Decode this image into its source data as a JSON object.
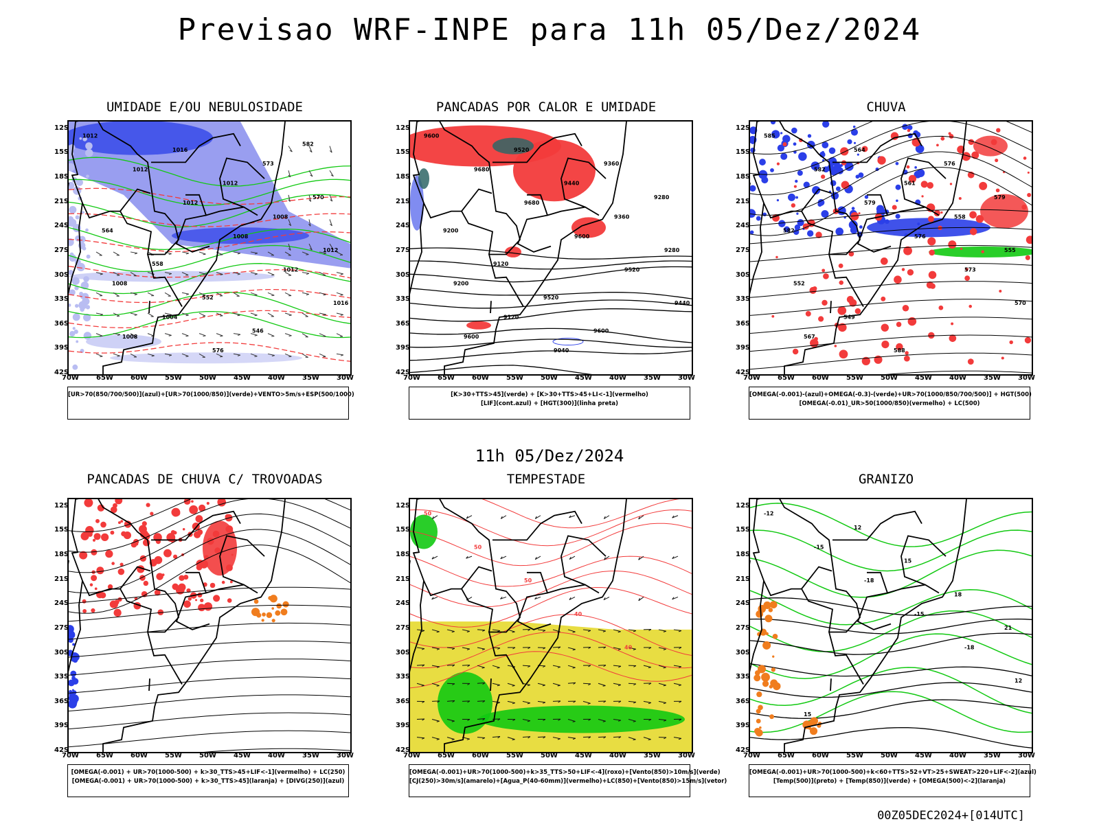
{
  "header": {
    "title": "Previsao WRF-INPE  para 11h 05/Dez/2024"
  },
  "mid_title": "11h 05/Dez/2024",
  "footer": "00Z05DEC2024+[014UTC]",
  "axes": {
    "lat_labels": [
      "12S",
      "15S",
      "18S",
      "21S",
      "24S",
      "27S",
      "30S",
      "33S",
      "36S",
      "39S",
      "42S"
    ],
    "lon_labels": [
      "70W",
      "65W",
      "60W",
      "55W",
      "50W",
      "45W",
      "40W",
      "35W",
      "30W"
    ]
  },
  "colors": {
    "blue": "#2b3fe8",
    "green": "#12c912",
    "red": "#f23b3b",
    "orange": "#f07d1e",
    "yellow": "#e6d92e",
    "teal": "#2f6666",
    "lightblue": "#b9bdf2",
    "midblue": "#7f86ec"
  },
  "panels": [
    {
      "title": "UMIDADE E/OU NEBULOSIDADE",
      "legend": [
        "[UR>70(850/700/500)](azul)+[UR>70(1000/850)](verde)+VENTO>5m/s+ESP(500/1000)"
      ],
      "contour_labels": [
        "1012",
        "1012",
        "1012",
        "1008",
        "1012",
        "1016",
        "1008",
        "1016",
        "1012",
        "1008",
        "1012",
        "1008",
        "1004",
        "576",
        "573",
        "570",
        "564",
        "558",
        "552",
        "546",
        "582"
      ]
    },
    {
      "title": "PANCADAS POR CALOR E UMIDADE",
      "legend": [
        "[K>30+TTS>45](verde) + [K>30+TTS>45+LI<-1](vermelho)",
        "[LIF](cont.azul) + [HGT(300)](linha preta)"
      ],
      "contour_labels": [
        "9600",
        "9680",
        "9680",
        "9600",
        "9520",
        "9440",
        "9600",
        "9520",
        "9440",
        "9360",
        "9280",
        "9200",
        "9120",
        "9040",
        "9360",
        "9280",
        "9200",
        "9120",
        "9520",
        "9600"
      ]
    },
    {
      "title": "CHUVA",
      "legend": [
        "[OMEGA(-0.001)-(azul)+OMEGA(-0.3)-(verde)+UR>70(1000/850/700/500)] + HGT(500)",
        "[OMEGA(-0.01)_UR>50(1000/850)(vermelho) + LC(500)"
      ],
      "contour_labels": [
        "585",
        "582",
        "579",
        "576",
        "573",
        "570",
        "567",
        "564",
        "561",
        "558",
        "555",
        "552",
        "549",
        "588",
        "576",
        "579",
        "582"
      ]
    },
    {
      "title": "PANCADAS DE CHUVA C/ TROVOADAS",
      "legend": [
        "[OMEGA(-0.001) + UR>70(1000-500) + k>30_TTS>45+LIF<-1](vermelho) + LC(250)",
        "[OMEGA(-0.001) + UR>70(1000-500) + k>30_TTS>45](laranja) + [DIVG(250)](azul)"
      ],
      "contour_labels": []
    },
    {
      "title": "TEMPESTADE",
      "legend": [
        "[OMEGA(-0.001)+UR>70(1000-500)+k>35_TTS>50+LIF<-4](roxo)+[Vento(850)>10m/s](verde)",
        "[CJ(250)>30m/s](amarelo)+[Agua_P(40-60mm)](vermelho)+LC(850)+[Vento(850)>15m/s](vetor)"
      ],
      "contour_labels": [
        "50",
        "50",
        "50",
        "40",
        "40"
      ]
    },
    {
      "title": "GRANIZO",
      "legend": [
        "[OMEGA(-0.001)+UR>70(1000-500)+k<60+TTS>52+VT>25+SWEAT>220+LIF<-2](azul)",
        "[Temp(500)](preto) + [Temp(850)](verde) + [OMEGA(500)<-2](laranja)"
      ],
      "contour_labels": [
        "-12",
        "-15",
        "-18",
        "-15",
        "-18",
        "12",
        "15",
        "12",
        "15",
        "18",
        "21"
      ]
    }
  ]
}
